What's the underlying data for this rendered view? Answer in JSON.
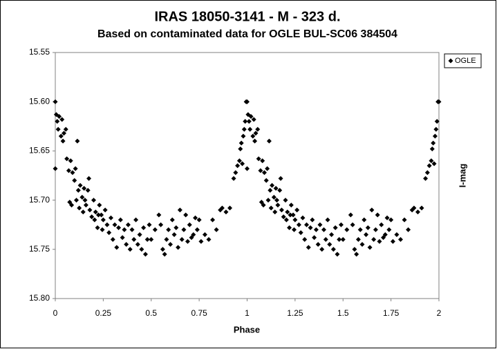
{
  "chart_data": {
    "type": "scatter",
    "title": "IRAS 18050-3141  - M - 323 d.",
    "subtitle": "Based on contaminated data for OGLE BUL-SC06 384504",
    "x_label": "Phase",
    "y_label": "I-mag",
    "xlim": [
      0,
      2
    ],
    "xticks": [
      0,
      0.25,
      0.5,
      0.75,
      1,
      1.25,
      1.5,
      1.75,
      2
    ],
    "ylim": [
      15.55,
      15.8
    ],
    "y_inverted": true,
    "yticks": [
      15.55,
      {
        "value": 15.6,
        "label": "15.60"
      },
      15.65,
      {
        "value": 15.7,
        "label": "15.70"
      },
      15.75,
      {
        "value": 15.8,
        "label": "15.80"
      }
    ],
    "legend": "top-right",
    "x": [
      0,
      0,
      0.005,
      0.01,
      0.015,
      0.02,
      0.03,
      0.035,
      0.04,
      0.045,
      0.055,
      0.06,
      0.07,
      0.075,
      0.08,
      0.085,
      0.09,
      0.1,
      0.105,
      0.11,
      0.115,
      0.12,
      0.125,
      0.13,
      0.14,
      0.145,
      0.15,
      0.155,
      0.16,
      0.17,
      0.175,
      0.18,
      0.19,
      0.2,
      0.205,
      0.21,
      0.22,
      0.225,
      0.23,
      0.24,
      0.245,
      0.25,
      0.26,
      0.27,
      0.28,
      0.29,
      0.3,
      0.31,
      0.32,
      0.33,
      0.34,
      0.35,
      0.36,
      0.37,
      0.38,
      0.39,
      0.4,
      0.41,
      0.42,
      0.43,
      0.44,
      0.45,
      0.46,
      0.47,
      0.48,
      0.49,
      0.5,
      0.52,
      0.54,
      0.55,
      0.56,
      0.57,
      0.58,
      0.59,
      0.6,
      0.61,
      0.62,
      0.63,
      0.64,
      0.65,
      0.66,
      0.67,
      0.68,
      0.69,
      0.7,
      0.71,
      0.72,
      0.73,
      0.74,
      0.75,
      0.76,
      0.78,
      0.8,
      0.82,
      0.84,
      0.86,
      0.87,
      0.89,
      0.91,
      0.93,
      0.94,
      0.95,
      0.96,
      0.965,
      0.97,
      0.975,
      0.98,
      0.985,
      0.99,
      0.995,
      1,
      1,
      1.005,
      1.01,
      1.015,
      1.02,
      1.03,
      1.035,
      1.04,
      1.045,
      1.055,
      1.06,
      1.07,
      1.075,
      1.08,
      1.085,
      1.09,
      1.1,
      1.105,
      1.11,
      1.115,
      1.12,
      1.125,
      1.13,
      1.14,
      1.145,
      1.15,
      1.155,
      1.16,
      1.17,
      1.175,
      1.18,
      1.19,
      1.2,
      1.205,
      1.21,
      1.22,
      1.225,
      1.23,
      1.24,
      1.245,
      1.25,
      1.26,
      1.27,
      1.28,
      1.29,
      1.3,
      1.31,
      1.32,
      1.33,
      1.34,
      1.35,
      1.36,
      1.37,
      1.38,
      1.39,
      1.4,
      1.41,
      1.42,
      1.43,
      1.44,
      1.45,
      1.46,
      1.47,
      1.48,
      1.49,
      1.5,
      1.52,
      1.54,
      1.55,
      1.56,
      1.57,
      1.58,
      1.59,
      1.6,
      1.61,
      1.62,
      1.63,
      1.64,
      1.65,
      1.66,
      1.67,
      1.68,
      1.69,
      1.7,
      1.71,
      1.72,
      1.73,
      1.74,
      1.75,
      1.76,
      1.78,
      1.8,
      1.82,
      1.84,
      1.86,
      1.87,
      1.89,
      1.91,
      1.93,
      1.94,
      1.95,
      1.96,
      1.965,
      1.97,
      1.975,
      1.98,
      1.985,
      1.99,
      1.995,
      2
    ],
    "series": [
      {
        "name": "OGLE",
        "color": "#000000",
        "values": [
          15.6,
          15.668,
          15.613,
          15.62,
          15.628,
          15.615,
          15.635,
          15.618,
          15.64,
          15.632,
          15.628,
          15.658,
          15.67,
          15.702,
          15.66,
          15.705,
          15.672,
          15.68,
          15.668,
          15.7,
          15.64,
          15.69,
          15.708,
          15.685,
          15.697,
          15.712,
          15.688,
          15.7,
          15.705,
          15.69,
          15.678,
          15.71,
          15.717,
          15.7,
          15.72,
          15.712,
          15.728,
          15.715,
          15.705,
          15.715,
          15.73,
          15.72,
          15.71,
          15.725,
          15.733,
          15.718,
          15.74,
          15.725,
          15.748,
          15.728,
          15.72,
          15.738,
          15.73,
          15.745,
          15.725,
          15.75,
          15.73,
          15.74,
          15.72,
          15.745,
          15.735,
          15.75,
          15.728,
          15.755,
          15.74,
          15.725,
          15.74,
          15.73,
          15.715,
          15.725,
          15.75,
          15.755,
          15.74,
          15.73,
          15.745,
          15.72,
          15.735,
          15.728,
          15.748,
          15.71,
          15.74,
          15.73,
          15.715,
          15.742,
          15.725,
          15.738,
          15.735,
          15.718,
          15.73,
          15.72,
          15.742,
          15.735,
          15.74,
          15.72,
          15.73,
          15.71,
          15.708,
          15.712,
          15.708,
          15.678,
          15.672,
          15.665,
          15.66,
          15.648,
          15.642,
          15.663,
          15.635,
          15.628,
          15.62,
          15.6,
          15.6,
          15.668,
          15.613,
          15.62,
          15.628,
          15.615,
          15.635,
          15.618,
          15.64,
          15.632,
          15.628,
          15.658,
          15.67,
          15.702,
          15.66,
          15.705,
          15.672,
          15.68,
          15.668,
          15.7,
          15.64,
          15.69,
          15.708,
          15.685,
          15.697,
          15.712,
          15.688,
          15.7,
          15.705,
          15.69,
          15.678,
          15.71,
          15.717,
          15.7,
          15.72,
          15.712,
          15.728,
          15.715,
          15.705,
          15.715,
          15.73,
          15.72,
          15.71,
          15.725,
          15.733,
          15.718,
          15.74,
          15.725,
          15.748,
          15.728,
          15.72,
          15.738,
          15.73,
          15.745,
          15.725,
          15.75,
          15.73,
          15.74,
          15.72,
          15.745,
          15.735,
          15.75,
          15.728,
          15.755,
          15.74,
          15.725,
          15.74,
          15.73,
          15.715,
          15.725,
          15.75,
          15.755,
          15.74,
          15.73,
          15.745,
          15.72,
          15.735,
          15.728,
          15.748,
          15.71,
          15.74,
          15.73,
          15.715,
          15.742,
          15.725,
          15.738,
          15.735,
          15.718,
          15.73,
          15.72,
          15.742,
          15.735,
          15.74,
          15.72,
          15.73,
          15.71,
          15.708,
          15.712,
          15.708,
          15.678,
          15.672,
          15.665,
          15.66,
          15.648,
          15.642,
          15.663,
          15.635,
          15.628,
          15.62,
          15.6,
          15.6
        ]
      }
    ]
  }
}
